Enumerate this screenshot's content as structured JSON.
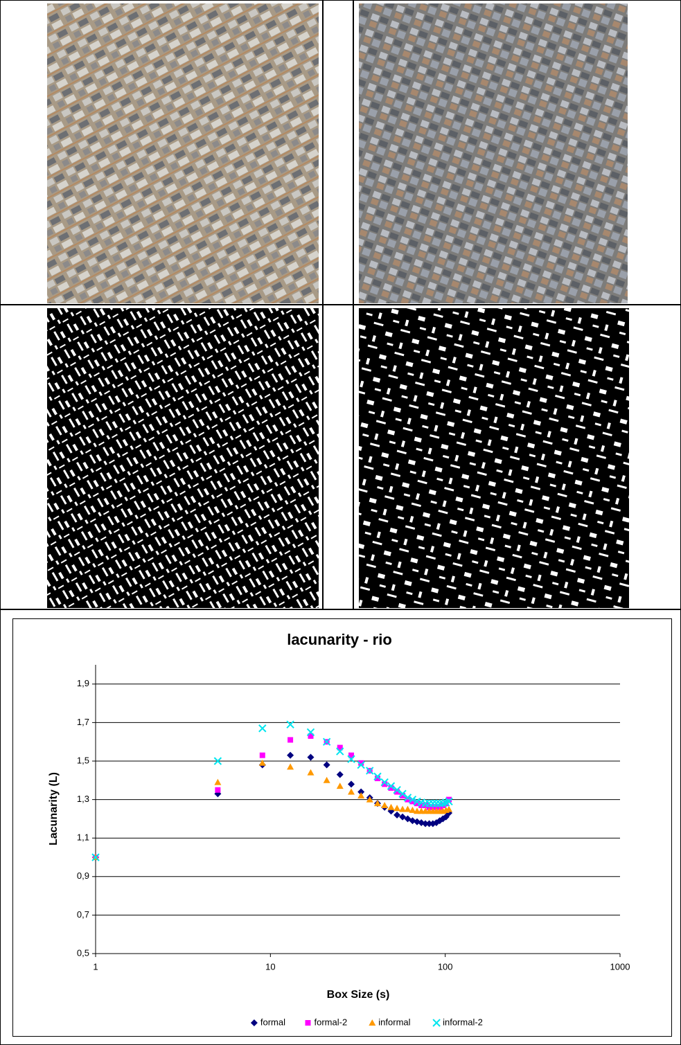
{
  "chart_data": {
    "type": "scatter",
    "title": "lacunarity - rio",
    "x_label": "Box Size (s)",
    "y_label": "Lacunarity (L)",
    "x": [
      1,
      5,
      9,
      13,
      17,
      21,
      25,
      29,
      33,
      37,
      41,
      45,
      49,
      53,
      57,
      61,
      65,
      69,
      73,
      77,
      81,
      85,
      89,
      93,
      97,
      101,
      105
    ],
    "series": [
      {
        "name": "formal",
        "color": "#000080",
        "marker": "diamond",
        "values": [
          1.0,
          1.33,
          1.48,
          1.53,
          1.52,
          1.48,
          1.43,
          1.38,
          1.34,
          1.31,
          1.28,
          1.26,
          1.24,
          1.22,
          1.21,
          1.2,
          1.19,
          1.185,
          1.18,
          1.175,
          1.175,
          1.175,
          1.18,
          1.19,
          1.2,
          1.21,
          1.23
        ]
      },
      {
        "name": "formal-2",
        "color": "#ff00ff",
        "marker": "square",
        "values": [
          1.0,
          1.35,
          1.53,
          1.61,
          1.63,
          1.6,
          1.57,
          1.53,
          1.49,
          1.45,
          1.41,
          1.38,
          1.36,
          1.34,
          1.32,
          1.3,
          1.29,
          1.28,
          1.27,
          1.27,
          1.26,
          1.26,
          1.26,
          1.26,
          1.27,
          1.28,
          1.3
        ]
      },
      {
        "name": "informal",
        "color": "#ff9900",
        "marker": "triangle",
        "values": [
          1.0,
          1.39,
          1.49,
          1.47,
          1.44,
          1.4,
          1.37,
          1.34,
          1.32,
          1.3,
          1.28,
          1.27,
          1.26,
          1.255,
          1.25,
          1.25,
          1.245,
          1.24,
          1.24,
          1.24,
          1.24,
          1.24,
          1.24,
          1.24,
          1.24,
          1.245,
          1.25
        ]
      },
      {
        "name": "informal-2",
        "color": "#00e5ee",
        "marker": "x",
        "values": [
          1.0,
          1.5,
          1.67,
          1.69,
          1.65,
          1.6,
          1.55,
          1.51,
          1.48,
          1.45,
          1.42,
          1.39,
          1.37,
          1.35,
          1.33,
          1.31,
          1.3,
          1.29,
          1.285,
          1.28,
          1.28,
          1.28,
          1.28,
          1.28,
          1.28,
          1.285,
          1.29
        ]
      }
    ],
    "log_x": true,
    "xlim": [
      1,
      1000
    ],
    "xticks": [
      1,
      10,
      100,
      1000
    ],
    "ylim": [
      0.5,
      2.0
    ],
    "yticks": [
      {
        "value": 0.5,
        "label": "0,5"
      },
      {
        "value": 0.7,
        "label": "0,7"
      },
      {
        "value": 0.9,
        "label": "0,9"
      },
      {
        "value": 1.1,
        "label": "1,1"
      },
      {
        "value": 1.3,
        "label": "1,3"
      },
      {
        "value": 1.5,
        "label": "1,5"
      },
      {
        "value": 1.7,
        "label": "1,7"
      },
      {
        "value": 1.9,
        "label": "1,9"
      }
    ],
    "grid": true,
    "legend": "bottom"
  }
}
